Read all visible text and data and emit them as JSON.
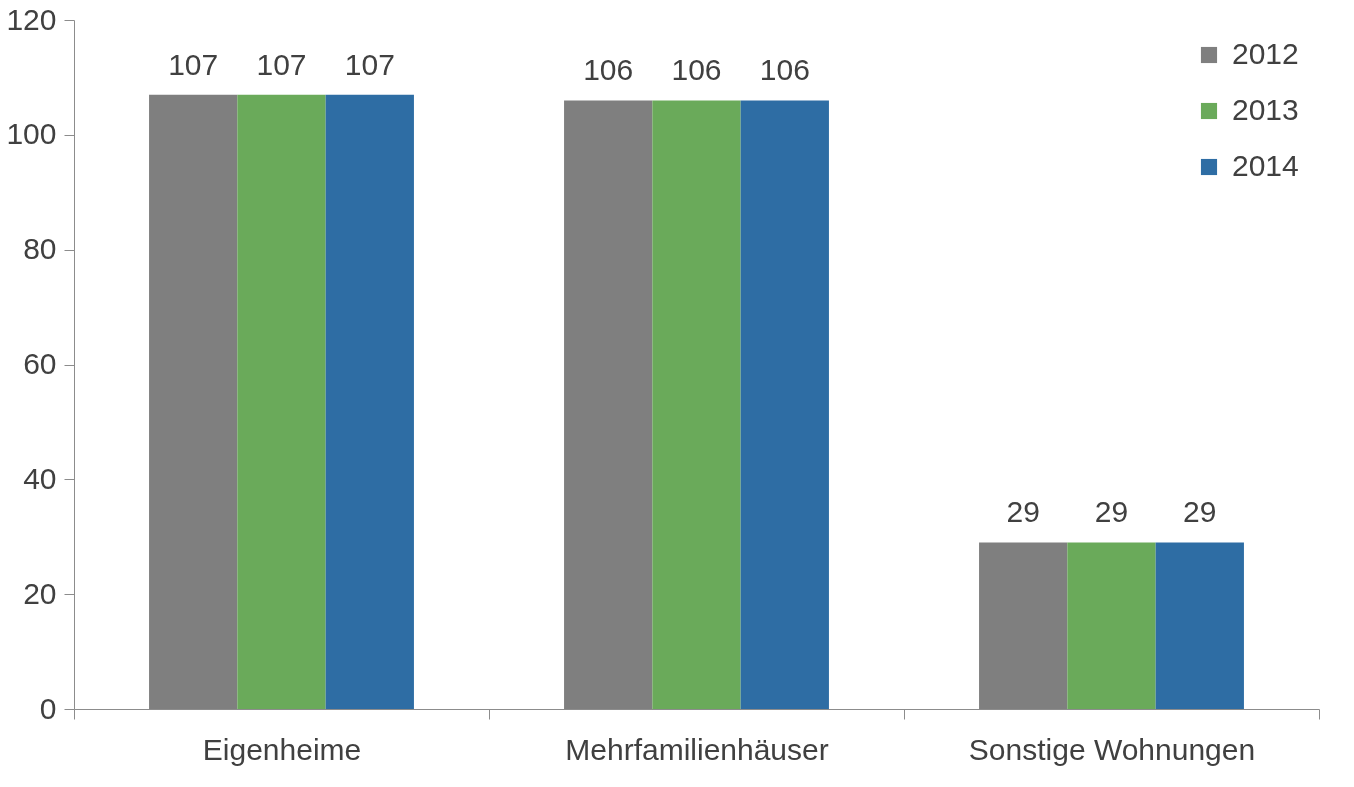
{
  "chart_data": {
    "type": "bar",
    "categories": [
      "Eigenheime",
      "Mehrfamilienhäuser",
      "Sonstige Wohnungen"
    ],
    "series": [
      {
        "name": "2012",
        "color": "#7f7f7f",
        "values": [
          107,
          106,
          29
        ]
      },
      {
        "name": "2013",
        "color": "#6aaa5a",
        "values": [
          107,
          106,
          29
        ]
      },
      {
        "name": "2014",
        "color": "#2e6da4",
        "values": [
          107,
          106,
          29
        ]
      }
    ],
    "ylim": [
      0,
      120
    ],
    "yticks": [
      0,
      20,
      40,
      60,
      80,
      100,
      120
    ],
    "data_labels": true,
    "legend": "top right",
    "grid": false
  }
}
